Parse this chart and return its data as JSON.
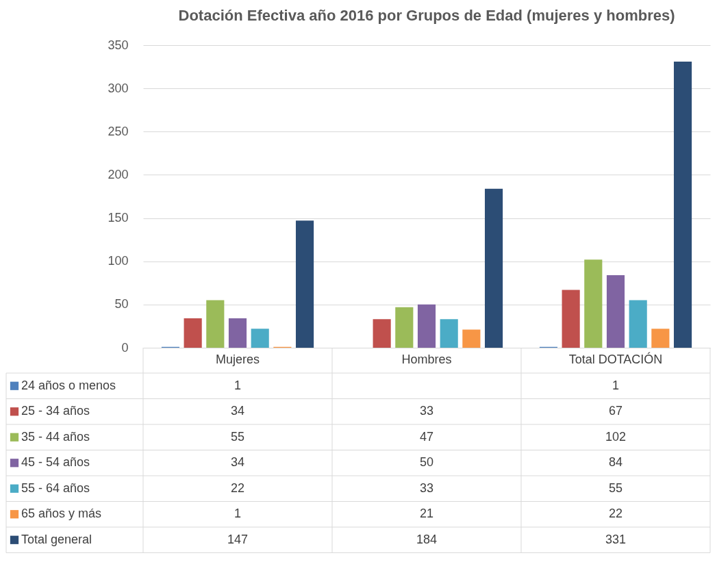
{
  "chart_data": {
    "type": "bar",
    "title": "Dotación Efectiva año 2016 por Grupos de Edad (mujeres y hombres)",
    "categories": [
      "Mujeres",
      "Hombres",
      "Total DOTACIÓN"
    ],
    "series": [
      {
        "name": "24 años o menos",
        "color": "#4f81bd",
        "values": [
          1,
          null,
          1
        ]
      },
      {
        "name": "25 - 34 años",
        "color": "#c0504d",
        "values": [
          34,
          33,
          67
        ]
      },
      {
        "name": "35 - 44 años",
        "color": "#9bbb59",
        "values": [
          55,
          47,
          102
        ]
      },
      {
        "name": "45 - 54 años",
        "color": "#8064a2",
        "values": [
          34,
          50,
          84
        ]
      },
      {
        "name": "55 - 64 años",
        "color": "#4bacc6",
        "values": [
          22,
          33,
          55
        ]
      },
      {
        "name": "65 años y más",
        "color": "#f79646",
        "values": [
          1,
          21,
          22
        ]
      },
      {
        "name": "Total general",
        "color": "#2c4d75",
        "values": [
          147,
          184,
          331
        ]
      }
    ],
    "ylim": [
      0,
      350
    ],
    "yticks": [
      0,
      50,
      100,
      150,
      200,
      250,
      300,
      350
    ],
    "grid": "y",
    "legend": "bottom left",
    "data_labels": true
  }
}
